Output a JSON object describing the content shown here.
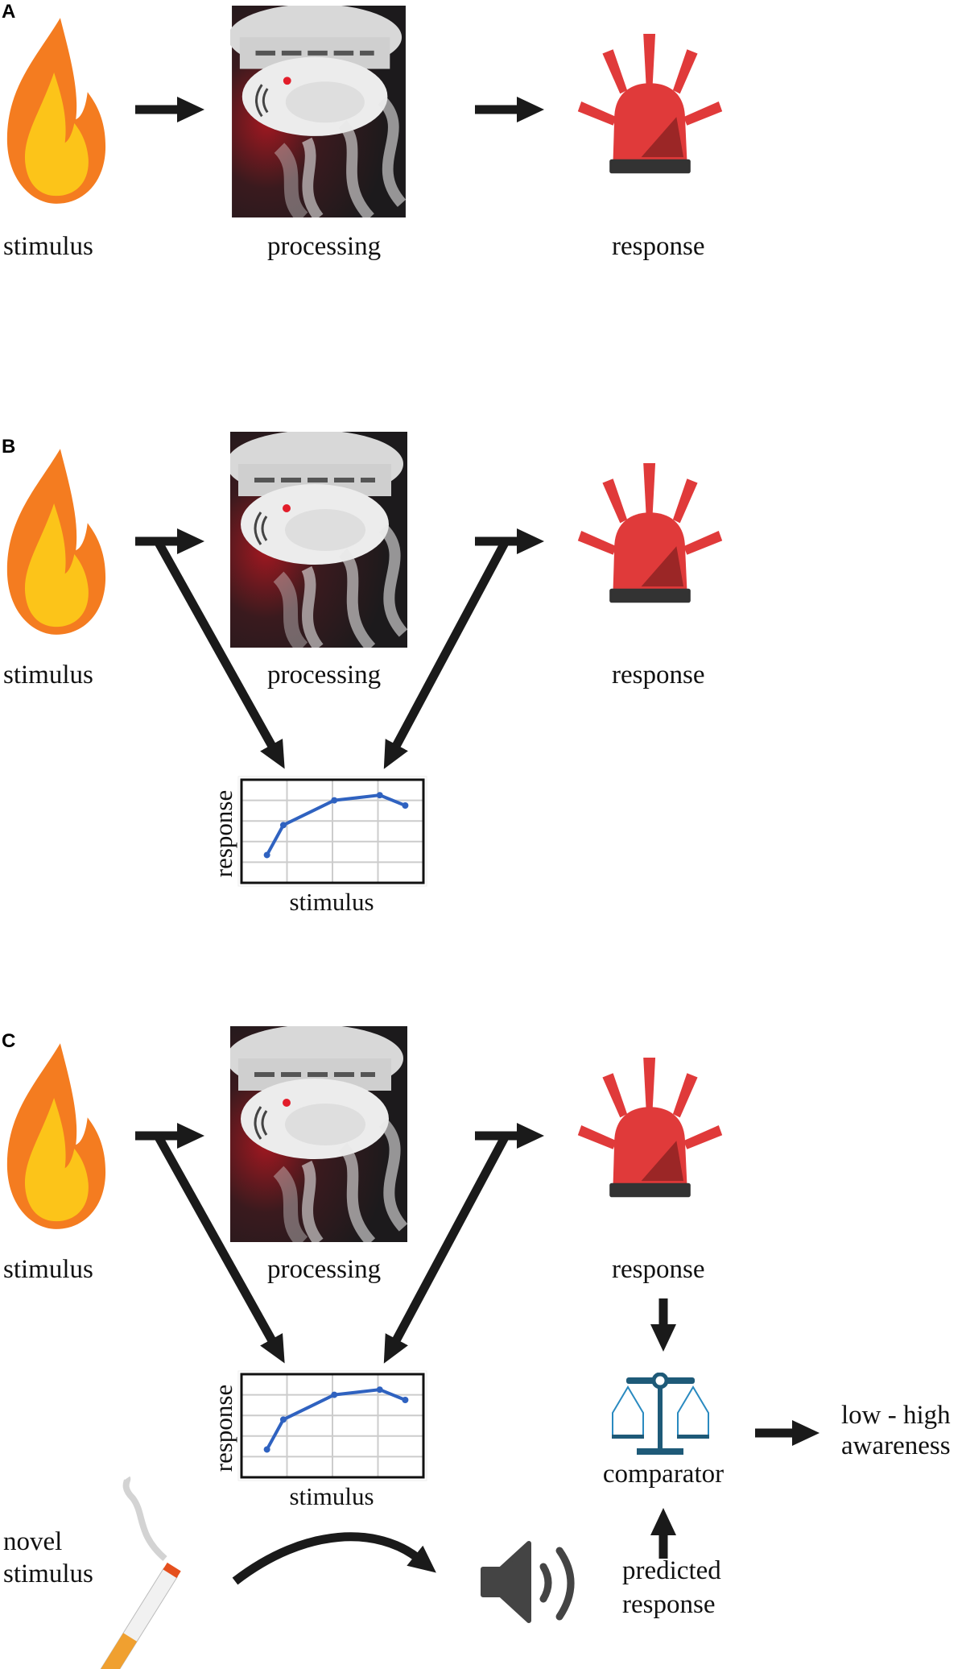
{
  "panels": {
    "a": {
      "letter": "A",
      "stimulus": "stimulus",
      "processing": "processing",
      "response": "response"
    },
    "b": {
      "letter": "B",
      "stimulus": "stimulus",
      "processing": "processing",
      "response": "response",
      "chart_xlabel": "stimulus",
      "chart_ylabel": "response"
    },
    "c": {
      "letter": "C",
      "stimulus": "stimulus",
      "processing": "processing",
      "response": "response",
      "chart_xlabel": "stimulus",
      "chart_ylabel": "response",
      "comparator": "comparator",
      "predicted_line1": "predicted",
      "predicted_line2": "response",
      "awareness_line1": "low - high",
      "awareness_line2": "awareness",
      "novel_line1": "novel",
      "novel_line2": "stimulus"
    }
  },
  "icons": [
    "flame-icon",
    "smoke-detector-image",
    "siren-icon",
    "balance-scale-icon",
    "cigarette-icon",
    "speaker-icon"
  ],
  "colors": {
    "flame_outer": "#f47c20",
    "flame_inner": "#fcc419",
    "siren": "#e03a3a",
    "curve": "#2f62c0",
    "scale": "#1e5a78"
  },
  "chart_data": [
    {
      "type": "line",
      "xlabel": "stimulus",
      "ylabel": "response",
      "grid": true,
      "x": [
        0.14,
        0.23,
        0.51,
        0.76,
        0.9
      ],
      "y": [
        0.27,
        0.56,
        0.8,
        0.85,
        0.75
      ]
    },
    {
      "type": "line",
      "xlabel": "stimulus",
      "ylabel": "response",
      "grid": true,
      "x": [
        0.14,
        0.23,
        0.51,
        0.76,
        0.9
      ],
      "y": [
        0.27,
        0.56,
        0.8,
        0.85,
        0.75
      ]
    }
  ]
}
